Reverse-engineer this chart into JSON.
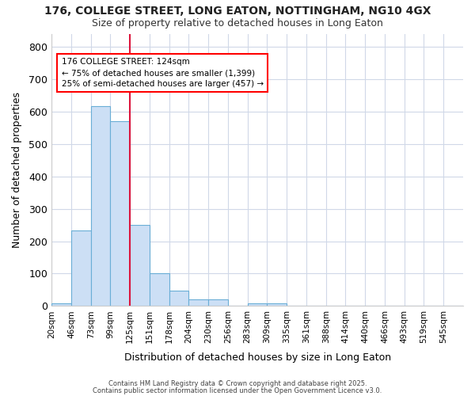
{
  "title": "176, COLLEGE STREET, LONG EATON, NOTTINGHAM, NG10 4GX",
  "subtitle": "Size of property relative to detached houses in Long Eaton",
  "xlabel": "Distribution of detached houses by size in Long Eaton",
  "ylabel": "Number of detached properties",
  "tick_labels": [
    "20sqm",
    "46sqm",
    "73sqm",
    "99sqm",
    "125sqm",
    "151sqm",
    "178sqm",
    "204sqm",
    "230sqm",
    "256sqm",
    "283sqm",
    "309sqm",
    "335sqm",
    "361sqm",
    "388sqm",
    "414sqm",
    "440sqm",
    "466sqm",
    "493sqm",
    "519sqm",
    "545sqm"
  ],
  "bar_heights": [
    8,
    232,
    617,
    570,
    250,
    100,
    48,
    20,
    20,
    0,
    8,
    8,
    0,
    0,
    0,
    0,
    0,
    0,
    0,
    0,
    0
  ],
  "bar_color": "#ccdff5",
  "bar_edge_color": "#6aaed6",
  "red_line_bin": 4,
  "annotation_title": "176 COLLEGE STREET: 124sqm",
  "annotation_line2": "← 75% of detached houses are smaller (1,399)",
  "annotation_line3": "25% of semi-detached houses are larger (457) →",
  "ylim": [
    0,
    840
  ],
  "yticks": [
    0,
    100,
    200,
    300,
    400,
    500,
    600,
    700,
    800
  ],
  "background_color": "#ffffff",
  "fig_background_color": "#ffffff",
  "grid_color": "#d0d8e8",
  "footer_line1": "Contains HM Land Registry data © Crown copyright and database right 2025.",
  "footer_line2": "Contains public sector information licensed under the Open Government Licence v3.0."
}
